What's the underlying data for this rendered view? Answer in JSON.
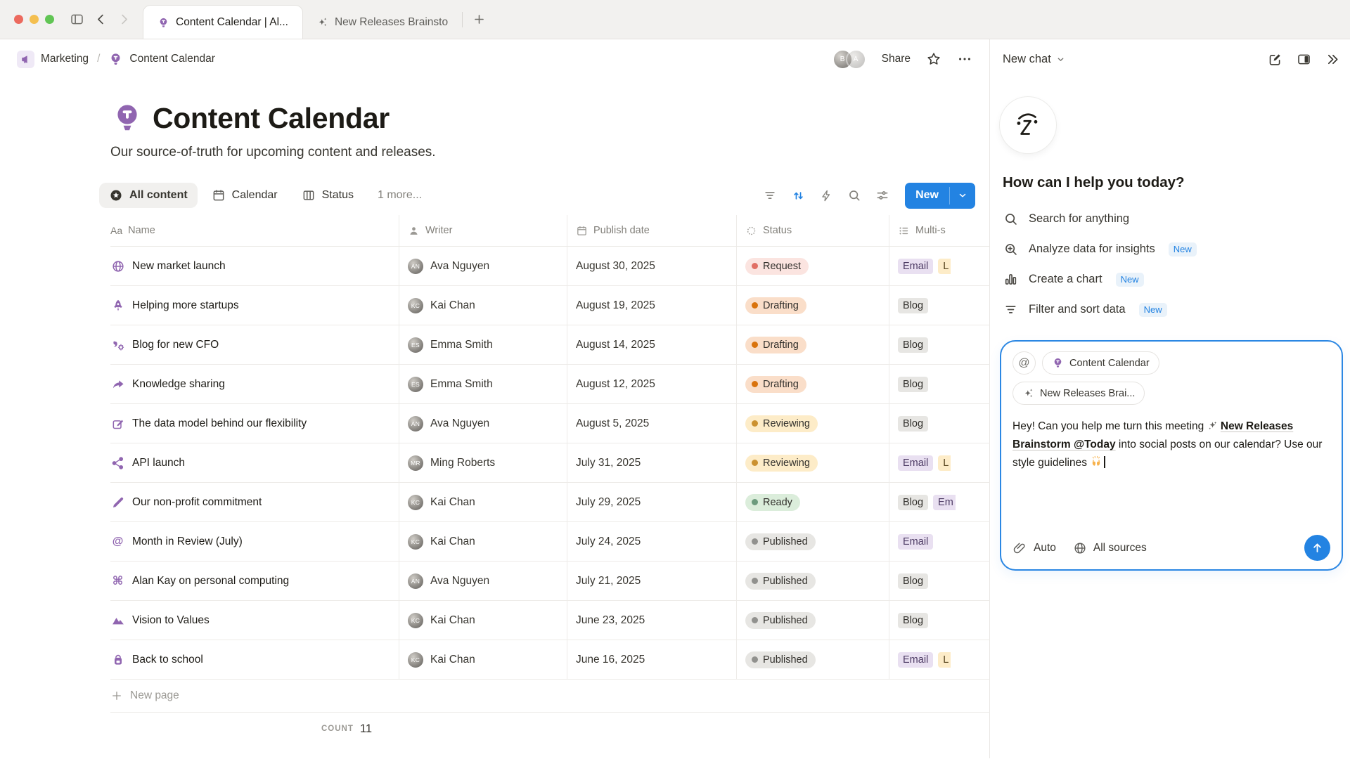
{
  "colors": {
    "accent": "#2383e2",
    "icon_purple": "#9065b0"
  },
  "window": {
    "tabs": [
      {
        "icon": "lightbulb",
        "label": "Content Calendar | Al...",
        "active": true
      },
      {
        "icon": "sparkles",
        "label": "New Releases Brainsto",
        "active": false
      }
    ]
  },
  "breadcrumb": {
    "workspace": "Marketing",
    "page": "Content Calendar"
  },
  "header": {
    "share": "Share"
  },
  "page": {
    "title": "Content Calendar",
    "subtitle": "Our source-of-truth for upcoming content and releases."
  },
  "views": {
    "items": [
      {
        "icon": "star-circle",
        "label": "All content",
        "active": true
      },
      {
        "icon": "calendar",
        "label": "Calendar",
        "active": false
      },
      {
        "icon": "board",
        "label": "Status",
        "active": false
      },
      {
        "icon": "",
        "label": "1 more...",
        "active": false,
        "muted": true
      }
    ],
    "new_button": "New"
  },
  "table": {
    "columns": [
      {
        "icon": "aa",
        "label": "Name",
        "class": "c-name"
      },
      {
        "icon": "person",
        "label": "Writer",
        "class": "c-writer"
      },
      {
        "icon": "calendar",
        "label": "Publish date",
        "class": "c-date"
      },
      {
        "icon": "spinner",
        "label": "Status",
        "class": "c-status"
      },
      {
        "icon": "list",
        "label": "Multi-s",
        "class": "c-multi"
      }
    ],
    "rows": [
      {
        "icon": "globe",
        "title": "New market launch",
        "writer": "Ava Nguyen",
        "date": "August 30, 2025",
        "status": {
          "label": "Request",
          "color": "red"
        },
        "tags": [
          {
            "label": "Email",
            "color": "purple"
          },
          {
            "label": "L",
            "color": "yellow",
            "clipped": true
          }
        ]
      },
      {
        "icon": "rocket",
        "title": "Helping more startups",
        "writer": "Kai Chan",
        "date": "August 19, 2025",
        "status": {
          "label": "Drafting",
          "color": "orange"
        },
        "tags": [
          {
            "label": "Blog",
            "color": "gray"
          }
        ]
      },
      {
        "icon": "gear-quote",
        "title": "Blog for new CFO",
        "writer": "Emma Smith",
        "date": "August 14, 2025",
        "status": {
          "label": "Drafting",
          "color": "orange"
        },
        "tags": [
          {
            "label": "Blog",
            "color": "gray"
          }
        ]
      },
      {
        "icon": "share-arrow",
        "title": "Knowledge sharing",
        "writer": "Emma Smith",
        "date": "August 12, 2025",
        "status": {
          "label": "Drafting",
          "color": "orange"
        },
        "tags": [
          {
            "label": "Blog",
            "color": "gray"
          }
        ]
      },
      {
        "icon": "edit-box",
        "title": "The data model behind our flexibility",
        "writer": "Ava Nguyen",
        "date": "August 5, 2025",
        "status": {
          "label": "Reviewing",
          "color": "yellow"
        },
        "tags": [
          {
            "label": "Blog",
            "color": "gray"
          }
        ]
      },
      {
        "icon": "nodes",
        "title": "API launch",
        "writer": "Ming Roberts",
        "date": "July 31, 2025",
        "status": {
          "label": "Reviewing",
          "color": "yellow"
        },
        "tags": [
          {
            "label": "Email",
            "color": "purple"
          },
          {
            "label": "L",
            "color": "yellow",
            "clipped": true
          }
        ]
      },
      {
        "icon": "pen",
        "title": "Our non-profit commitment",
        "writer": "Kai Chan",
        "date": "July 29, 2025",
        "status": {
          "label": "Ready",
          "color": "green"
        },
        "tags": [
          {
            "label": "Blog",
            "color": "gray"
          },
          {
            "label": "Em",
            "color": "purple",
            "clipped": true
          }
        ]
      },
      {
        "icon": "at",
        "title": "Month in Review (July)",
        "writer": "Kai Chan",
        "date": "July 24, 2025",
        "status": {
          "label": "Published",
          "color": "gray"
        },
        "tags": [
          {
            "label": "Email",
            "color": "purple"
          }
        ]
      },
      {
        "icon": "command",
        "title": "Alan Kay on personal computing",
        "writer": "Ava Nguyen",
        "date": "July 21, 2025",
        "status": {
          "label": "Published",
          "color": "gray"
        },
        "tags": [
          {
            "label": "Blog",
            "color": "gray"
          }
        ]
      },
      {
        "icon": "mountains",
        "title": "Vision to Values",
        "writer": "Kai Chan",
        "date": "June 23, 2025",
        "status": {
          "label": "Published",
          "color": "gray"
        },
        "tags": [
          {
            "label": "Blog",
            "color": "gray"
          }
        ]
      },
      {
        "icon": "backpack",
        "title": "Back to school",
        "writer": "Kai Chan",
        "date": "June 16, 2025",
        "status": {
          "label": "Published",
          "color": "gray"
        },
        "tags": [
          {
            "label": "Email",
            "color": "purple"
          },
          {
            "label": "L",
            "color": "yellow",
            "clipped": true
          }
        ]
      }
    ],
    "new_page": "New page",
    "count_label": "COUNT",
    "count_value": "11"
  },
  "assistant": {
    "header_title": "New chat",
    "greeting": "How can I help you today?",
    "menu": [
      {
        "icon": "search",
        "label": "Search for anything",
        "badge": ""
      },
      {
        "icon": "search-plus",
        "label": "Analyze data for insights",
        "badge": "New"
      },
      {
        "icon": "bar-chart",
        "label": "Create a chart",
        "badge": "New"
      },
      {
        "icon": "filter",
        "label": "Filter and sort data",
        "badge": "New"
      }
    ],
    "composer": {
      "chips_rows": [
        [
          {
            "icon": "at",
            "label": ""
          },
          {
            "icon": "lightbulb",
            "label": "Content Calendar"
          }
        ],
        [
          {
            "icon": "sparkles",
            "label": "New Releases Brai..."
          }
        ]
      ],
      "message": {
        "part1": "Hey! Can you help me turn this meeting ",
        "link": "New Releases Brainstorm @Today",
        "part2": " into social posts on our calendar? Use our style guidelines ",
        "emoji": "🙌"
      },
      "mode": "Auto",
      "sources": "All sources"
    }
  }
}
